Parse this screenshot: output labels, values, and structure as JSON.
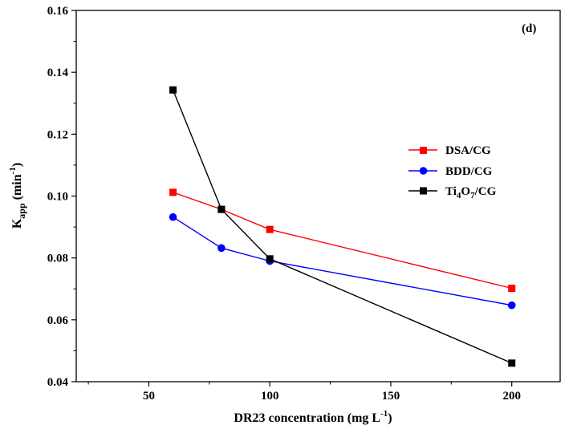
{
  "chart_data": {
    "type": "line",
    "panel_label": "(d)",
    "xlabel": {
      "base": "DR23 concentration (mg L",
      "sup": "-1",
      "tail": ")"
    },
    "ylabel": {
      "base": "K",
      "sub": "app",
      "mid": " (min",
      "sup": "-1",
      "tail": ")"
    },
    "xlim": [
      20,
      220
    ],
    "ylim": [
      0.04,
      0.16
    ],
    "xticks": [
      50,
      100,
      150,
      200
    ],
    "xtick_labels": [
      "50",
      "100",
      "150",
      "200"
    ],
    "yticks": [
      0.04,
      0.06,
      0.08,
      0.1,
      0.12,
      0.14,
      0.16
    ],
    "ytick_labels": [
      "0.04",
      "0.06",
      "0.08",
      "0.10",
      "0.12",
      "0.14",
      "0.16"
    ],
    "grid": false,
    "legend_position": "right",
    "series": [
      {
        "name": "DSA/CG",
        "legend": {
          "base": "DSA/CG"
        },
        "color": "#ff0000",
        "marker": "square",
        "x": [
          60,
          80,
          100,
          200
        ],
        "y": [
          0.1012,
          0.0957,
          0.0892,
          0.0702
        ]
      },
      {
        "name": "BDD/CG",
        "legend": {
          "base": "BDD/CG"
        },
        "color": "#0000ff",
        "marker": "circle",
        "x": [
          60,
          80,
          100,
          200
        ],
        "y": [
          0.0932,
          0.0832,
          0.079,
          0.0647
        ]
      },
      {
        "name": "Ti4O7/CG",
        "legend": {
          "p1": "Ti",
          "s1": "4",
          "p2": "O",
          "s2": "7",
          "p3": "/CG"
        },
        "color": "#000000",
        "marker": "square",
        "x": [
          60,
          80,
          100,
          200
        ],
        "y": [
          0.1343,
          0.0957,
          0.0797,
          0.046
        ]
      }
    ]
  }
}
